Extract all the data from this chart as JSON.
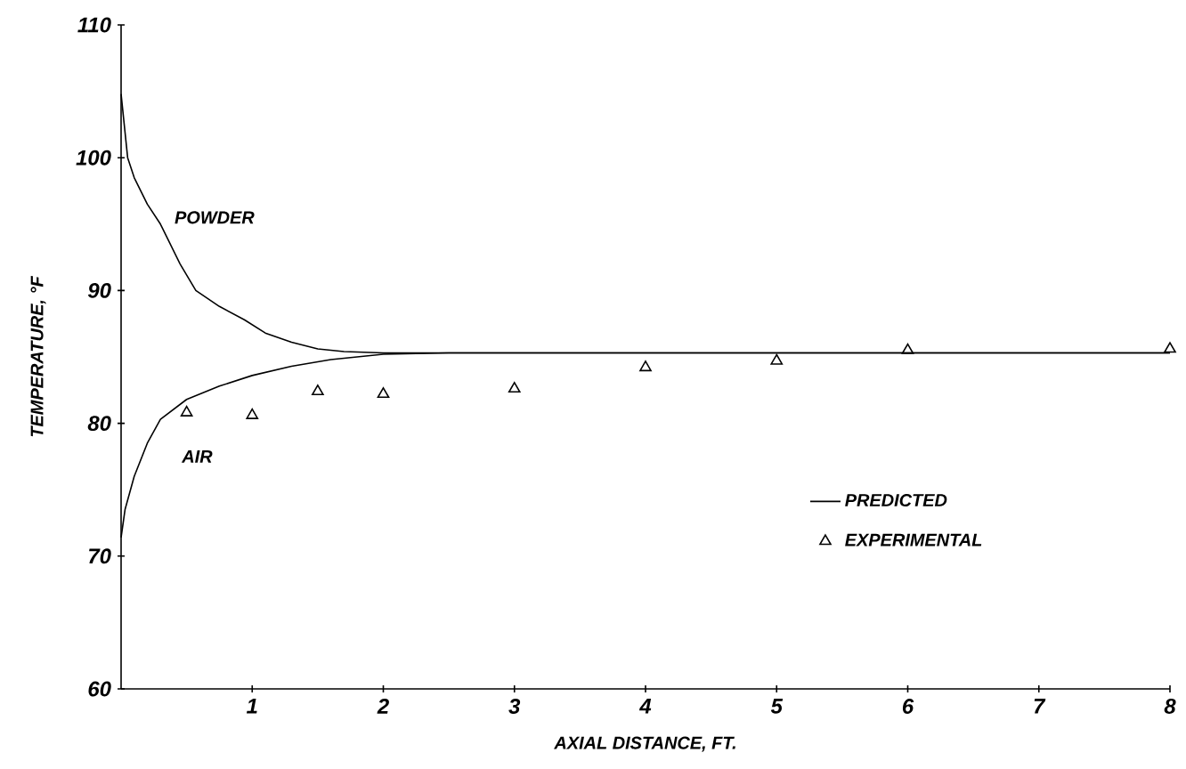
{
  "chart_data": {
    "type": "line",
    "xlabel": "AXIAL DISTANCE, FT.",
    "ylabel": "TEMPERATURE, °F",
    "xlim": [
      0,
      8
    ],
    "xticks": [
      1,
      2,
      3,
      4,
      5,
      6,
      7,
      8
    ],
    "ylim": [
      60,
      110
    ],
    "yticks": [
      60,
      70,
      80,
      90,
      100,
      110
    ],
    "legend": "right",
    "grid": false,
    "series": [
      {
        "name": "PREDICTED",
        "color": "#000000",
        "line_style": "solid",
        "x": [
          0,
          0.05,
          0.1,
          0.2,
          0.3,
          0.45,
          0.57,
          0.75,
          0.94,
          1.1,
          1.3,
          1.5,
          1.7,
          2,
          8
        ],
        "values": [
          104.8,
          100,
          98.5,
          96.5,
          95,
          92,
          90,
          88.8,
          87.8,
          86.8,
          86.1,
          85.6,
          85.4,
          85.3,
          85.3
        ]
      },
      {
        "color": "#000000",
        "line_style": "solid",
        "x": [
          0,
          0.03,
          0.1,
          0.2,
          0.3,
          0.5,
          0.75,
          1,
          1.3,
          1.6,
          2,
          2.5,
          8
        ],
        "values": [
          71.4,
          73.5,
          76,
          78.5,
          80.3,
          81.8,
          82.8,
          83.6,
          84.3,
          84.8,
          85.2,
          85.3,
          85.3
        ]
      },
      {
        "name": "EXPERIMENTAL",
        "type": "scatter",
        "color": "#000000",
        "marker": "triangle",
        "x": [
          0.5,
          1,
          1.5,
          2,
          3,
          4,
          5,
          6,
          8
        ],
        "values": [
          80.8,
          80.6,
          82.4,
          82.2,
          82.6,
          84.2,
          84.7,
          85.5,
          85.6
        ]
      }
    ],
    "annotations": [
      "POWDER",
      "AIR"
    ]
  }
}
